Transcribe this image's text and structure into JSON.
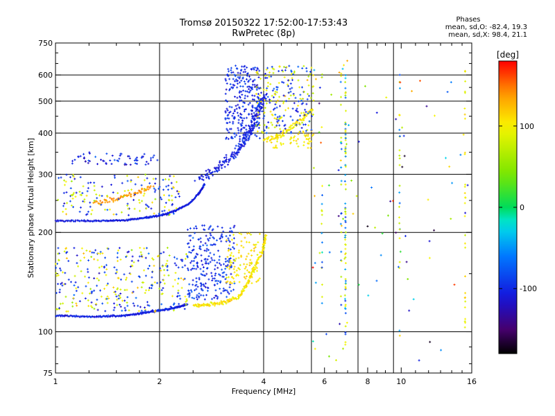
{
  "header": {
    "title": "Tromsø 20150322 17:52:00-17:53:43",
    "subtitle": "RwPretec (8p)"
  },
  "stats": {
    "heading": "Phases",
    "line_o": "mean, sd,O: -82.4, 19.3",
    "line_x": "mean, sd,X: 98.4, 21.1"
  },
  "chart_data": {
    "type": "scatter",
    "title": "Tromsø 20150322 17:52:00-17:53:43",
    "subtitle": "RwPretec (8p)",
    "xlabel": "Frequency [MHz]",
    "ylabel": "Stationary phase Virtual Height [km]",
    "x_scale": "log",
    "y_scale": "log",
    "xlim": [
      1,
      16
    ],
    "ylim": [
      75,
      750
    ],
    "x_ticks": [
      1,
      2,
      4,
      6,
      8,
      10,
      16
    ],
    "x_ticks_labels": [
      "1",
      "2",
      "4",
      "6",
      "8",
      "10",
      "16"
    ],
    "x_grid": [
      2,
      4,
      5.5,
      7.5,
      9.5
    ],
    "x_minor": [
      6.5,
      8.5
    ],
    "y_ticks": [
      75,
      100,
      200,
      300,
      400,
      500,
      600,
      750
    ],
    "y_ticks_labels": [
      "75",
      "100",
      "200",
      "300",
      "400",
      "500",
      "600",
      "750"
    ],
    "y_grid": [
      100,
      200,
      300,
      400,
      500,
      600
    ],
    "grid": true,
    "colorbar": {
      "label": "[deg]",
      "range": [
        -180,
        180
      ],
      "ticks": [
        100,
        0,
        -100
      ],
      "ticks_labels": [
        "100",
        "0",
        "-100"
      ]
    },
    "series": [
      {
        "values": [
          [
            1.0,
            217,
            -105
          ],
          [
            1.2,
            217,
            -105
          ],
          [
            1.4,
            217,
            -105
          ],
          [
            1.6,
            218,
            -105
          ],
          [
            1.8,
            221,
            -105
          ],
          [
            2.0,
            225,
            -105
          ],
          [
            2.2,
            232,
            -105
          ],
          [
            2.4,
            242,
            -105
          ],
          [
            1.0,
            112,
            -105
          ],
          [
            1.3,
            111,
            -105
          ],
          [
            1.6,
            113,
            -105
          ],
          [
            1.9,
            115,
            -105
          ],
          [
            2.2,
            118,
            -105
          ],
          [
            2.4,
            121,
            -105
          ],
          [
            2.6,
            295,
            -100
          ],
          [
            3.0,
            320,
            -100
          ],
          [
            3.4,
            360,
            -100
          ],
          [
            3.7,
            420,
            -100
          ],
          [
            4.0,
            500,
            -100
          ]
        ]
      },
      {
        "values": [
          [
            2.5,
            120,
            120
          ],
          [
            2.8,
            121,
            120
          ],
          [
            3.1,
            123,
            120
          ],
          [
            3.4,
            128,
            120
          ],
          [
            3.6,
            140,
            120
          ],
          [
            3.8,
            160,
            120
          ],
          [
            4.0,
            180,
            120
          ],
          [
            4.0,
            380,
            100
          ],
          [
            4.4,
            390,
            100
          ],
          [
            4.8,
            415,
            100
          ],
          [
            5.2,
            440,
            100
          ]
        ]
      }
    ],
    "legend": "none"
  }
}
